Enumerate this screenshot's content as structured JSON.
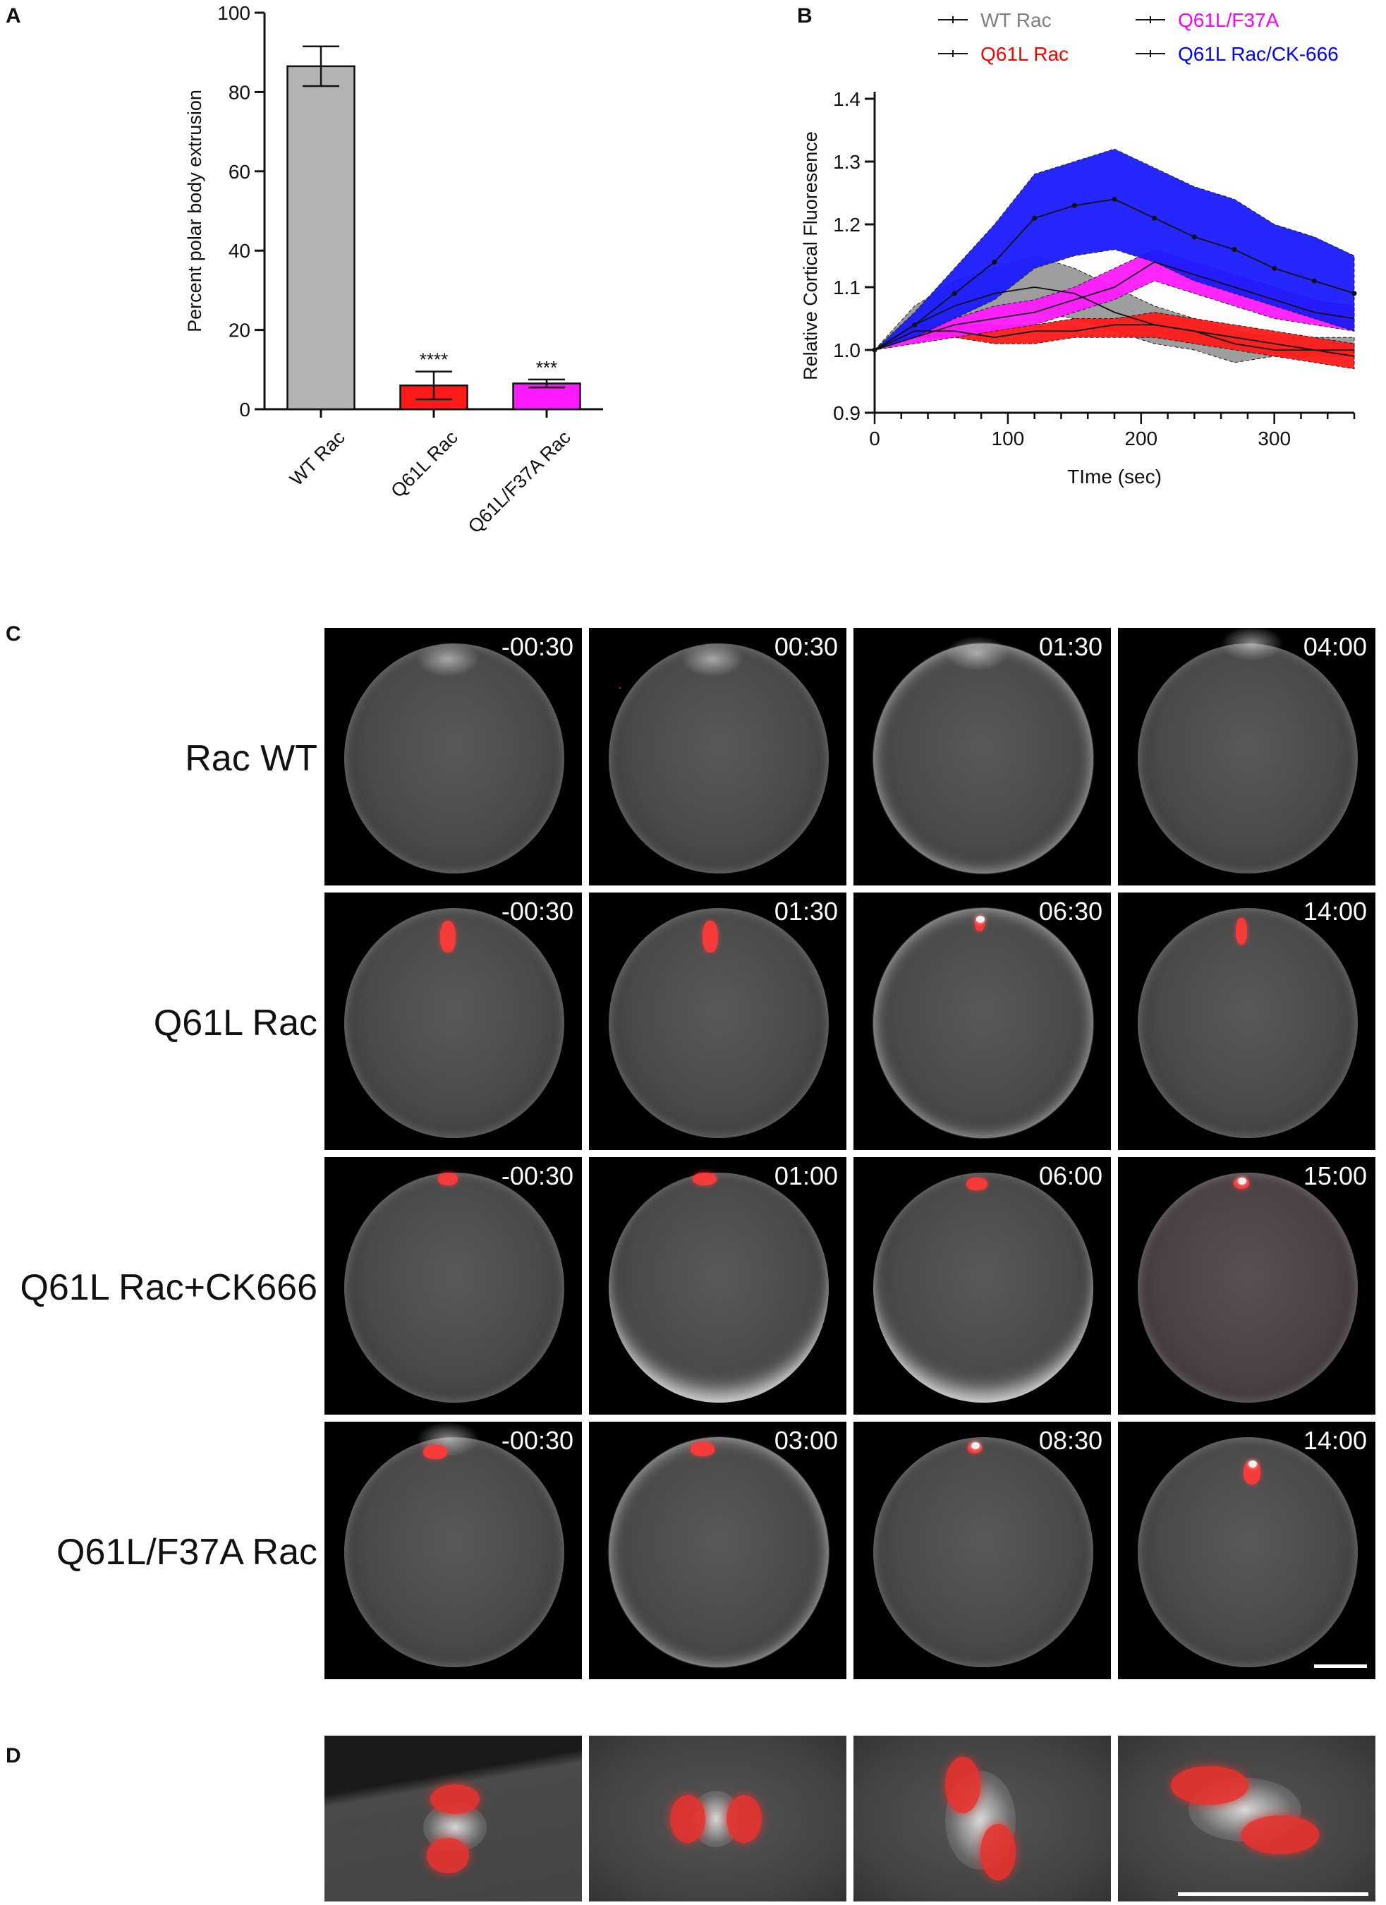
{
  "panels": {
    "a": "A",
    "b": "B",
    "c": "C",
    "d": "D"
  },
  "chart_data": [
    {
      "type": "bar",
      "panel": "A",
      "title": "",
      "xlabel": "",
      "ylabel": "Percent polar body extrusion",
      "ylim": [
        0,
        100
      ],
      "yticks": [
        0,
        20,
        40,
        60,
        80,
        100
      ],
      "categories": [
        "WT Rac",
        "Q61L Rac",
        "Q61L/F37A Rac"
      ],
      "values": [
        86.5,
        6,
        6.5
      ],
      "errors": [
        5,
        3.5,
        1
      ],
      "colors": [
        "#b3b3b3",
        "#ff1a1a",
        "#ff1aff"
      ],
      "annotations": [
        "",
        "****",
        "***"
      ]
    },
    {
      "type": "line",
      "panel": "B",
      "title": "",
      "xlabel": "TIme (sec)",
      "ylabel": "Relative Cortical Fluoresence",
      "xlim": [
        0,
        360
      ],
      "ylim": [
        0.9,
        1.4
      ],
      "xticks": [
        0,
        100,
        200,
        300
      ],
      "yticks": [
        "0.9",
        "1.0",
        "1.1",
        "1.2",
        "1.3",
        "1.4"
      ],
      "x": [
        0,
        30,
        60,
        90,
        120,
        150,
        180,
        210,
        240,
        270,
        300,
        330,
        360
      ],
      "legend_position": "top",
      "series": [
        {
          "name": "WT Rac",
          "color": "#808080",
          "fill": "#999999",
          "mean": [
            1.0,
            1.04,
            1.07,
            1.09,
            1.1,
            1.09,
            1.06,
            1.04,
            1.03,
            1.01,
            1.0,
            1.0,
            1.0
          ],
          "upper": [
            1.0,
            1.07,
            1.11,
            1.13,
            1.15,
            1.13,
            1.1,
            1.07,
            1.05,
            1.03,
            1.02,
            1.02,
            1.02
          ],
          "lower": [
            1.0,
            1.02,
            1.03,
            1.05,
            1.06,
            1.05,
            1.03,
            1.01,
            1.0,
            0.98,
            0.99,
            0.99,
            0.99
          ]
        },
        {
          "name": "Q61L Rac",
          "color": "#ff0000",
          "fill": "#ff1a1a",
          "mean": [
            1.0,
            1.03,
            1.03,
            1.02,
            1.03,
            1.03,
            1.04,
            1.04,
            1.03,
            1.02,
            1.01,
            1.0,
            0.99
          ],
          "upper": [
            1.0,
            1.04,
            1.04,
            1.04,
            1.04,
            1.05,
            1.05,
            1.06,
            1.05,
            1.04,
            1.03,
            1.02,
            1.01
          ],
          "lower": [
            1.0,
            1.02,
            1.02,
            1.01,
            1.01,
            1.02,
            1.02,
            1.02,
            1.01,
            1.0,
            0.99,
            0.98,
            0.97
          ]
        },
        {
          "name": "Q61L/F37A",
          "color": "#ff00ff",
          "fill": "#ff1aff",
          "mean": [
            1.0,
            1.02,
            1.04,
            1.05,
            1.06,
            1.08,
            1.1,
            1.14,
            1.12,
            1.1,
            1.08,
            1.06,
            1.05
          ],
          "upper": [
            1.0,
            1.03,
            1.05,
            1.07,
            1.08,
            1.1,
            1.13,
            1.16,
            1.14,
            1.12,
            1.1,
            1.08,
            1.07
          ],
          "lower": [
            1.0,
            1.01,
            1.02,
            1.03,
            1.04,
            1.06,
            1.08,
            1.11,
            1.09,
            1.07,
            1.05,
            1.04,
            1.03
          ]
        },
        {
          "name": "Q61L Rac/CK-666",
          "color": "#0000ff",
          "fill": "#1a1aff",
          "mean": [
            1.0,
            1.04,
            1.09,
            1.14,
            1.21,
            1.23,
            1.24,
            1.21,
            1.18,
            1.16,
            1.13,
            1.11,
            1.09
          ],
          "upper": [
            1.0,
            1.06,
            1.13,
            1.2,
            1.28,
            1.3,
            1.32,
            1.29,
            1.26,
            1.24,
            1.2,
            1.18,
            1.15
          ],
          "lower": [
            1.0,
            1.02,
            1.05,
            1.08,
            1.13,
            1.15,
            1.16,
            1.14,
            1.11,
            1.09,
            1.07,
            1.05,
            1.03
          ]
        }
      ]
    }
  ],
  "panel_c": {
    "rows": [
      {
        "label": "Rac WT",
        "times": [
          "-00:30",
          "00:30",
          "01:30",
          "04:00"
        ]
      },
      {
        "label": "Q61L Rac",
        "times": [
          "-00:30",
          "01:30",
          "06:30",
          "14:00"
        ]
      },
      {
        "label": "Q61L Rac+CK666",
        "times": [
          "-00:30",
          "01:00",
          "06:00",
          "15:00"
        ]
      },
      {
        "label": "Q61L/F37A Rac",
        "times": [
          "-00:30",
          "03:00",
          "08:30",
          "14:00"
        ]
      }
    ]
  }
}
